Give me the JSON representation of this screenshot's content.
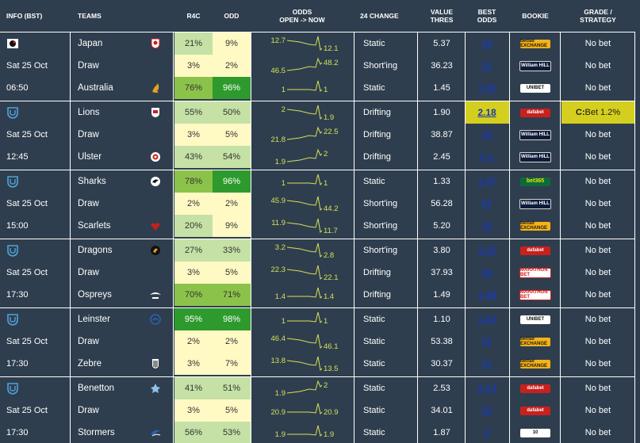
{
  "headers": {
    "info": "INFO (BST)",
    "teams": "TEAMS",
    "r4c": "R4C",
    "odd": "ODD",
    "odds_line1": "ODDS",
    "odds_line2": "OPEN -> NOW",
    "change": "24 CHANGE",
    "value_line1": "VALUE",
    "value_line2": "THRES",
    "best_line1": "BEST",
    "best_line2": "ODDS",
    "bookie": "BOOKIE",
    "grade_line1": "GRADE /",
    "grade_line2": "STRATEGY"
  },
  "colors": {
    "background": "#2f3e4e",
    "pale": "#fff9c4",
    "light_green": "#c5e1a5",
    "mid_green": "#8bc34a",
    "dark_green": "#2e9a2e",
    "sparkline": "#d4e157",
    "highlight": "#d4cf1f",
    "link": "#1a3aa8"
  },
  "matches": [
    {
      "competition_icon": "league-logo-icon",
      "rows": [
        {
          "info": "",
          "team": "Japan",
          "team_icon": "japan-crest-icon",
          "r4c": "21%",
          "odd": "9%",
          "open": "12.7",
          "now": "12.1",
          "change": "Static",
          "value": "5.37",
          "best": "19",
          "bookie": "betfair-exchange",
          "grade": "No bet"
        },
        {
          "info": "Sat 25 Oct",
          "team": "Draw",
          "team_icon": "",
          "r4c": "3%",
          "odd": "2%",
          "open": "46.5",
          "now": "48.2",
          "change": "Short'ing",
          "value": "36.23",
          "best": "51",
          "bookie": "william-hill",
          "grade": "No bet"
        },
        {
          "info": "06:50",
          "team": "Australia",
          "team_icon": "australia-wallaby-icon",
          "r4c": "76%",
          "odd": "96%",
          "open": "1",
          "now": "1",
          "change": "Static",
          "value": "1.45",
          "best": "1.06",
          "bookie": "unibet",
          "grade": "No bet"
        }
      ]
    },
    {
      "competition_icon": "urc-logo-icon",
      "rows": [
        {
          "info": "",
          "team": "Lions",
          "team_icon": "lions-crest-icon",
          "r4c": "55%",
          "odd": "50%",
          "open": "2",
          "now": "1.9",
          "change": "Drifting",
          "value": "1.90",
          "best": "2.18",
          "bookie": "dafabet",
          "grade_prefix": "C:",
          "grade": "Bet 1.2%",
          "highlight": true
        },
        {
          "info": "Sat 25 Oct",
          "team": "Draw",
          "team_icon": "",
          "r4c": "3%",
          "odd": "5%",
          "open": "21.8",
          "now": "22.5",
          "change": "Drifting",
          "value": "38.87",
          "best": "29",
          "bookie": "william-hill",
          "grade": "No bet"
        },
        {
          "info": "12:45",
          "team": "Ulster",
          "team_icon": "ulster-crest-icon",
          "r4c": "43%",
          "odd": "54%",
          "open": "1.9",
          "now": "2",
          "change": "Drifting",
          "value": "2.45",
          "best": "2.1",
          "bookie": "william-hill",
          "grade": "No bet"
        }
      ]
    },
    {
      "competition_icon": "urc-logo-icon",
      "rows": [
        {
          "info": "",
          "team": "Sharks",
          "team_icon": "sharks-crest-icon",
          "r4c": "78%",
          "odd": "96%",
          "open": "1",
          "now": "1",
          "change": "Static",
          "value": "1.33",
          "best": "1.07",
          "bookie": "bet365",
          "grade": "No bet"
        },
        {
          "info": "Sat 25 Oct",
          "team": "Draw",
          "team_icon": "",
          "r4c": "2%",
          "odd": "2%",
          "open": "45.9",
          "now": "44.2",
          "change": "Short'ing",
          "value": "56.28",
          "best": "67",
          "bookie": "william-hill",
          "grade": "No bet"
        },
        {
          "info": "15:00",
          "team": "Scarlets",
          "team_icon": "scarlets-crest-icon",
          "r4c": "20%",
          "odd": "9%",
          "open": "11.9",
          "now": "11.7",
          "change": "Short'ing",
          "value": "5.20",
          "best": "15",
          "bookie": "betfair-exchange",
          "grade": "No bet"
        }
      ]
    },
    {
      "competition_icon": "urc-logo-icon",
      "rows": [
        {
          "info": "",
          "team": "Dragons",
          "team_icon": "dragons-crest-icon",
          "r4c": "27%",
          "odd": "33%",
          "open": "3.2",
          "now": "2.8",
          "change": "Short'ing",
          "value": "3.80",
          "best": "3.35",
          "bookie": "dafabet",
          "grade": "No bet"
        },
        {
          "info": "Sat 25 Oct",
          "team": "Draw",
          "team_icon": "",
          "r4c": "3%",
          "odd": "5%",
          "open": "22.3",
          "now": "22.1",
          "change": "Drifting",
          "value": "37.93",
          "best": "26",
          "bookie": "marathonbet",
          "grade": "No bet"
        },
        {
          "info": "17:30",
          "team": "Ospreys",
          "team_icon": "ospreys-crest-icon",
          "r4c": "70%",
          "odd": "71%",
          "open": "1.4",
          "now": "1.4",
          "change": "Drifting",
          "value": "1.49",
          "best": "1.48",
          "bookie": "marathonbet",
          "grade": "No bet"
        }
      ]
    },
    {
      "competition_icon": "urc-logo-icon",
      "rows": [
        {
          "info": "",
          "team": "Leinster",
          "team_icon": "leinster-crest-icon",
          "r4c": "95%",
          "odd": "98%",
          "open": "1",
          "now": "1",
          "change": "Static",
          "value": "1.10",
          "best": "1.04",
          "bookie": "unibet",
          "grade": "No bet"
        },
        {
          "info": "Sat 25 Oct",
          "team": "Draw",
          "team_icon": "",
          "r4c": "2%",
          "odd": "2%",
          "open": "46.4",
          "now": "46.1",
          "change": "Static",
          "value": "53.38",
          "best": "51",
          "bookie": "betfair-exchange",
          "grade": "No bet"
        },
        {
          "info": "17:30",
          "team": "Zebre",
          "team_icon": "zebre-crest-icon",
          "r4c": "3%",
          "odd": "7%",
          "open": "13.8",
          "now": "13.5",
          "change": "Static",
          "value": "30.37",
          "best": "21",
          "bookie": "betfair-exchange",
          "grade": "No bet"
        }
      ]
    },
    {
      "competition_icon": "urc-logo-icon",
      "rows": [
        {
          "info": "",
          "team": "Benetton",
          "team_icon": "benetton-crest-icon",
          "r4c": "41%",
          "odd": "51%",
          "open": "1.9",
          "now": "2",
          "change": "Static",
          "value": "2.53",
          "best": "2.44",
          "bookie": "dafabet",
          "grade": "No bet"
        },
        {
          "info": "Sat 25 Oct",
          "team": "Draw",
          "team_icon": "",
          "r4c": "3%",
          "odd": "5%",
          "open": "20.9",
          "now": "20.9",
          "change": "Static",
          "value": "34.01",
          "best": "25",
          "bookie": "dafabet",
          "grade": "No bet"
        },
        {
          "info": "17:30",
          "team": "Stormers",
          "team_icon": "stormers-crest-icon",
          "r4c": "56%",
          "odd": "53%",
          "open": "1.9",
          "now": "1.9",
          "change": "Static",
          "value": "1.87",
          "best": "2",
          "bookie": "10bet",
          "grade": "No bet"
        }
      ]
    }
  ],
  "bookie_labels": {
    "betfair-exchange": "betfair EXCHANGE",
    "william-hill": "William HILL",
    "unibet": "UNIBET",
    "dafabet": "dafabet",
    "bet365": "bet365",
    "marathonbet": "MARATHON BET",
    "10bet": "10"
  }
}
